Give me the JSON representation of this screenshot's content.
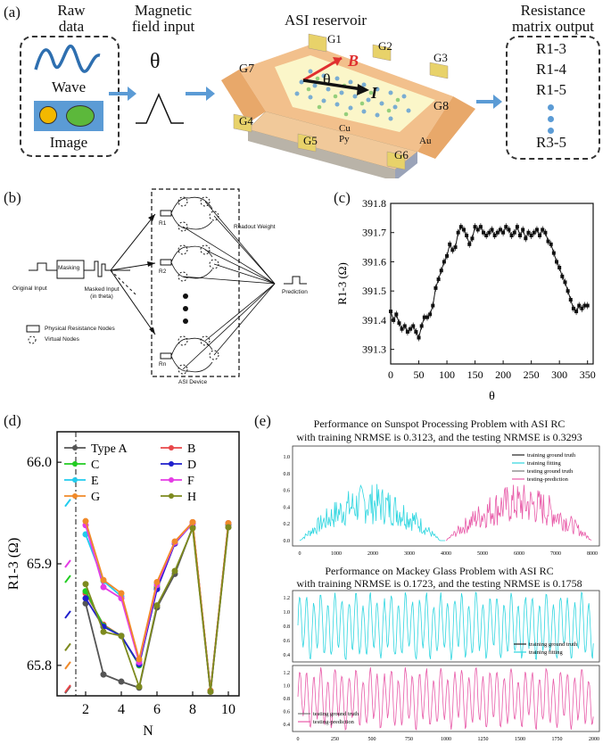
{
  "panel_a": {
    "label": "(a)",
    "raw_data_title": "Raw\ndata",
    "wave_label": "Wave",
    "image_label": "Image",
    "mag_title": "Magnetic\nfield input",
    "theta": "θ",
    "asi_title": "ASI reservoir",
    "res_title": "Resistance\nmatrix output",
    "res_items": [
      "R1-3",
      "R1-4",
      "R1-5",
      "R3-5"
    ],
    "gates": [
      "G1",
      "G2",
      "G3",
      "G4",
      "G5",
      "G6",
      "G7",
      "G8"
    ],
    "B": "B",
    "I": "I",
    "cu": "Cu",
    "py": "Py",
    "au": "Au",
    "colors": {
      "arrow": "#5b9bd5",
      "gold": "#e8a86a",
      "wave": "#2e6fb0",
      "dot": "#5b9bd5"
    }
  },
  "panel_b": {
    "label": "(b)",
    "original_input": "Original Input",
    "masking": "Masking",
    "masked_input": "Masked Input\n(in theta)",
    "readout_weight": "Readout Weight",
    "prediction": "Prediction",
    "r_labels": [
      "R1",
      "R2",
      "Rn"
    ],
    "legend_phys": "Physical Resistance Nodes",
    "legend_virtual": "Virtual Nodes",
    "asi_device": "ASI Device"
  },
  "panel_c": {
    "label": "(c)",
    "chart_data": {
      "type": "line",
      "xlabel": "θ",
      "ylabel": "R1-3 (Ω)",
      "xlim": [
        0,
        360
      ],
      "ylim": [
        391.25,
        391.8
      ],
      "xticks": [
        0,
        50,
        100,
        150,
        200,
        250,
        300,
        350
      ],
      "yticks": [
        391.3,
        391.4,
        391.5,
        391.6,
        391.7,
        391.8
      ],
      "x": [
        0,
        5,
        10,
        15,
        20,
        25,
        30,
        35,
        40,
        45,
        50,
        55,
        60,
        65,
        70,
        75,
        80,
        85,
        90,
        95,
        100,
        105,
        110,
        115,
        120,
        125,
        130,
        135,
        140,
        145,
        150,
        155,
        160,
        165,
        170,
        175,
        180,
        185,
        190,
        195,
        200,
        205,
        210,
        215,
        220,
        225,
        230,
        235,
        240,
        245,
        250,
        255,
        260,
        265,
        270,
        275,
        280,
        285,
        290,
        295,
        300,
        305,
        310,
        315,
        320,
        325,
        330,
        335,
        340,
        345,
        350
      ],
      "values": [
        391.43,
        391.4,
        391.42,
        391.39,
        391.37,
        391.38,
        391.36,
        391.37,
        391.38,
        391.36,
        391.34,
        391.38,
        391.41,
        391.41,
        391.42,
        391.45,
        391.51,
        391.54,
        391.57,
        391.6,
        391.62,
        391.66,
        391.64,
        391.65,
        391.7,
        391.72,
        391.71,
        391.69,
        391.66,
        391.68,
        391.72,
        391.71,
        391.72,
        391.7,
        391.69,
        391.7,
        391.71,
        391.69,
        391.7,
        391.71,
        391.7,
        391.72,
        391.71,
        391.69,
        391.7,
        391.72,
        391.69,
        391.71,
        391.68,
        391.7,
        391.69,
        391.7,
        391.71,
        391.69,
        391.71,
        391.7,
        391.67,
        391.66,
        391.63,
        391.6,
        391.58,
        391.55,
        391.53,
        391.5,
        391.47,
        391.44,
        391.43,
        391.45,
        391.44,
        391.45,
        391.45
      ]
    }
  },
  "panel_d": {
    "label": "(d)",
    "chart_data": {
      "type": "line",
      "xlabel": "N",
      "ylabel": "R1-3 (Ω)",
      "xlim": [
        0.4,
        10.6
      ],
      "ylim": [
        65.77,
        66.03
      ],
      "xticks": [
        2,
        4,
        6,
        8,
        10
      ],
      "yticks": [
        65.8,
        65.9,
        66.0
      ],
      "x": [
        1,
        2,
        3,
        4,
        5,
        6,
        7,
        8,
        9,
        10
      ],
      "series": [
        {
          "name": "Type A",
          "color": "#555555",
          "values": [
            65.776,
            65.861,
            65.791,
            65.784,
            65.778,
            65.857,
            65.89,
            65.936,
            65.774,
            65.936
          ]
        },
        {
          "name": "B",
          "color": "#e8474a",
          "values": [
            65.777,
            65.871,
            65.84,
            65.829,
            65.801,
            65.876,
            65.92,
            65.941,
            65.775,
            65.939
          ]
        },
        {
          "name": "C",
          "color": "#22cc22",
          "values": [
            65.885,
            65.873,
            65.839,
            65.829,
            65.8,
            65.877,
            65.921,
            65.94,
            65.774,
            65.939
          ]
        },
        {
          "name": "D",
          "color": "#1f1fcc",
          "values": [
            65.85,
            65.866,
            65.838,
            65.829,
            65.801,
            65.875,
            65.92,
            65.94,
            65.775,
            65.939
          ]
        },
        {
          "name": "E",
          "color": "#22ccee",
          "values": [
            65.96,
            65.929,
            65.883,
            65.868,
            65.804,
            65.881,
            65.921,
            65.94,
            65.774,
            65.94
          ]
        },
        {
          "name": "F",
          "color": "#e43be4",
          "values": [
            65.9,
            65.938,
            65.877,
            65.866,
            65.803,
            65.879,
            65.921,
            65.94,
            65.774,
            65.94
          ]
        },
        {
          "name": "G",
          "color": "#f08a2a",
          "values": [
            65.8,
            65.942,
            65.884,
            65.871,
            65.806,
            65.882,
            65.922,
            65.941,
            65.775,
            65.94
          ]
        },
        {
          "name": "H",
          "color": "#7d8a1e",
          "values": [
            65.818,
            65.88,
            65.833,
            65.829,
            65.779,
            65.859,
            65.893,
            65.935,
            65.774,
            65.936
          ]
        }
      ]
    }
  },
  "panel_e": {
    "label": "(e)",
    "title1": "Performance on Sunspot Processing Problem with ASI RC",
    "title1b": "with training NRMSE is 0.3123, and the testing NRMSE is 0.3293",
    "title2": "Performance on Mackey Glass Problem with ASI RC",
    "title2b": "with training NRMSE is 0.1723, and the testing NRMSE is 0.1758",
    "legend1": [
      "training ground truth",
      "training fitting",
      "testing ground truth",
      "testing-prediction"
    ],
    "legend2": [
      "training ground truth",
      "training fitting"
    ],
    "legend3": [
      "testing ground truth",
      "testing-prediction"
    ],
    "sunspot_xticks": [
      "0",
      "1000",
      "2000",
      "3000",
      "4000",
      "5000",
      "6000",
      "7000",
      "8000"
    ],
    "sunspot_yticks": [
      "0.0",
      "0.2",
      "0.4",
      "0.6",
      "0.8",
      "1.0"
    ],
    "mg_yticks": [
      "0.4",
      "0.6",
      "0.8",
      "1.0",
      "1.2"
    ],
    "mg_xticks": [
      "0",
      "250",
      "500",
      "750",
      "1000",
      "1250",
      "1500",
      "1750",
      "2000"
    ],
    "colors": {
      "cyan": "#2fd6e0",
      "pink": "#e85aa8",
      "black": "#222222"
    }
  }
}
